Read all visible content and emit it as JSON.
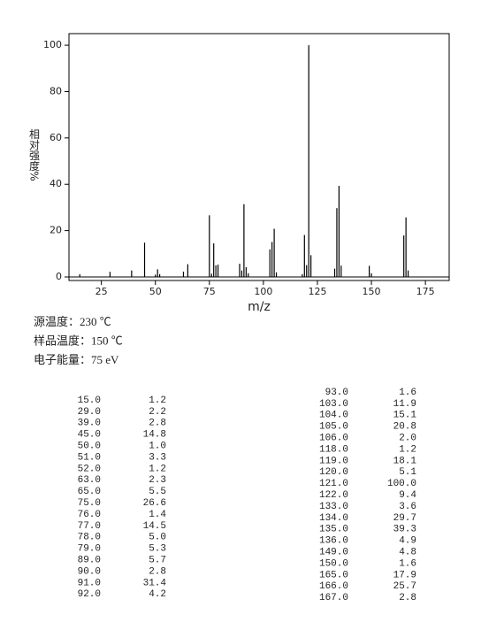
{
  "chart_data": {
    "type": "bar",
    "ylabel": "相对强度%",
    "xlabel": "m/z",
    "x": [
      15,
      29,
      39,
      45,
      50,
      51,
      52,
      63,
      65,
      75,
      76,
      77,
      78,
      79,
      89,
      90,
      91,
      92,
      93,
      103,
      104,
      105,
      106,
      118,
      119,
      120,
      121,
      122,
      133,
      134,
      135,
      136,
      149,
      150,
      165,
      166,
      167
    ],
    "values": [
      1.2,
      2.2,
      2.8,
      14.8,
      1.0,
      3.3,
      1.2,
      2.3,
      5.5,
      26.6,
      1.4,
      14.5,
      5.0,
      5.3,
      5.7,
      2.8,
      31.4,
      4.2,
      1.6,
      11.9,
      15.1,
      20.8,
      2.0,
      1.2,
      18.1,
      5.1,
      100.0,
      9.4,
      3.6,
      29.7,
      39.3,
      4.9,
      4.8,
      1.6,
      17.9,
      25.7,
      2.8
    ],
    "color": "#000000",
    "xlim": [
      10,
      186
    ],
    "xticks": [
      25,
      50,
      75,
      100,
      125,
      150,
      175
    ],
    "ylim": [
      0,
      105
    ],
    "yticks": [
      0,
      20,
      40,
      60,
      80,
      100
    ]
  },
  "conditions": [
    "源温度：230 ℃",
    "样品温度：150 ℃",
    "电子能量：75 eV"
  ],
  "peak_table": {
    "left": [
      [
        "15.0",
        "1.2"
      ],
      [
        "29.0",
        "2.2"
      ],
      [
        "39.0",
        "2.8"
      ],
      [
        "45.0",
        "14.8"
      ],
      [
        "50.0",
        "1.0"
      ],
      [
        "51.0",
        "3.3"
      ],
      [
        "52.0",
        "1.2"
      ],
      [
        "63.0",
        "2.3"
      ],
      [
        "65.0",
        "5.5"
      ],
      [
        "75.0",
        "26.6"
      ],
      [
        "76.0",
        "1.4"
      ],
      [
        "77.0",
        "14.5"
      ],
      [
        "78.0",
        "5.0"
      ],
      [
        "79.0",
        "5.3"
      ],
      [
        "89.0",
        "5.7"
      ],
      [
        "90.0",
        "2.8"
      ],
      [
        "91.0",
        "31.4"
      ],
      [
        "92.0",
        "4.2"
      ]
    ],
    "right": [
      [
        "93.0",
        "1.6"
      ],
      [
        "103.0",
        "11.9"
      ],
      [
        "104.0",
        "15.1"
      ],
      [
        "105.0",
        "20.8"
      ],
      [
        "106.0",
        "2.0"
      ],
      [
        "118.0",
        "1.2"
      ],
      [
        "119.0",
        "18.1"
      ],
      [
        "120.0",
        "5.1"
      ],
      [
        "121.0",
        "100.0"
      ],
      [
        "122.0",
        "9.4"
      ],
      [
        "133.0",
        "3.6"
      ],
      [
        "134.0",
        "29.7"
      ],
      [
        "135.0",
        "39.3"
      ],
      [
        "136.0",
        "4.9"
      ],
      [
        "149.0",
        "4.8"
      ],
      [
        "150.0",
        "1.6"
      ],
      [
        "165.0",
        "17.9"
      ],
      [
        "166.0",
        "25.7"
      ],
      [
        "167.0",
        "2.8"
      ]
    ]
  }
}
